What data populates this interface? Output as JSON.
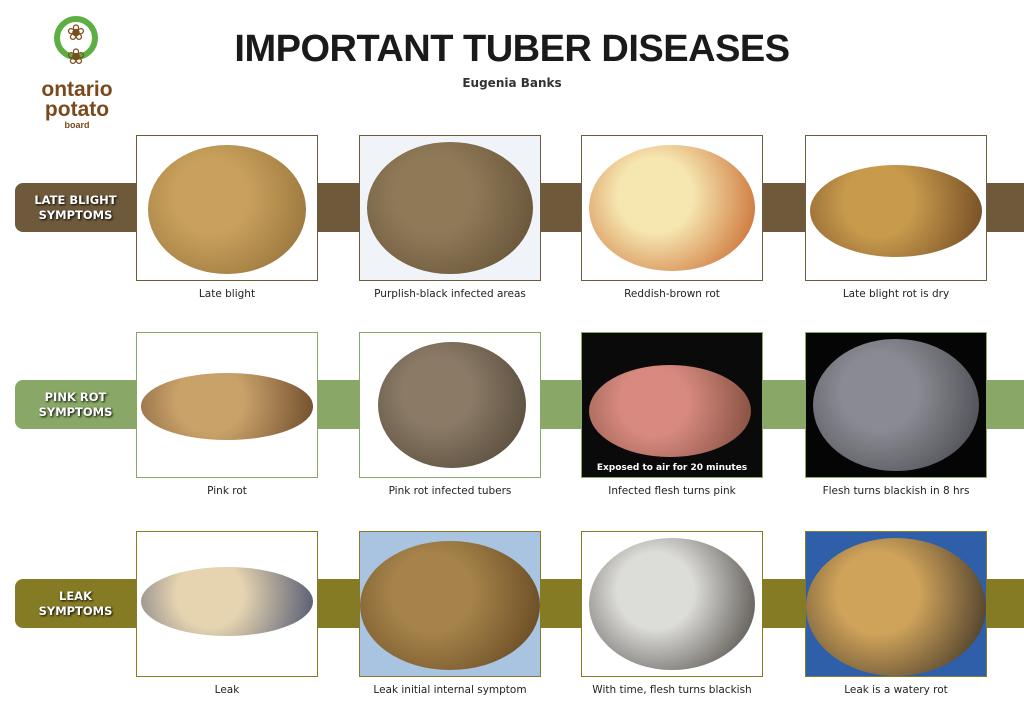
{
  "header": {
    "title": "IMPORTANT TUBER DISEASES",
    "author": "Eugenia Banks"
  },
  "logo": {
    "line1": "ontario",
    "line2": "potato",
    "line3": "board"
  },
  "rows": [
    {
      "label1": "LATE BLIGHT",
      "label2": "SYMPTOMS",
      "color": "#6e5a3b",
      "captions": [
        "Late blight",
        "Purplish-black infected areas",
        "Reddish-brown rot",
        "Late blight rot is dry"
      ]
    },
    {
      "label1": "PINK ROT",
      "label2": "SYMPTOMS",
      "color": "#89a867",
      "captions": [
        "Pink rot",
        "Pink rot infected tubers",
        "Infected flesh turns pink",
        "Flesh turns blackish in 8 hrs"
      ],
      "photo_note": "Exposed to air for 20 minutes"
    },
    {
      "label1": "LEAK",
      "label2": "SYMPTOMS",
      "color": "#857b24",
      "captions": [
        "Leak",
        "Leak initial internal symptom",
        "With time, flesh turns blackish",
        "Leak is a watery rot"
      ]
    }
  ]
}
